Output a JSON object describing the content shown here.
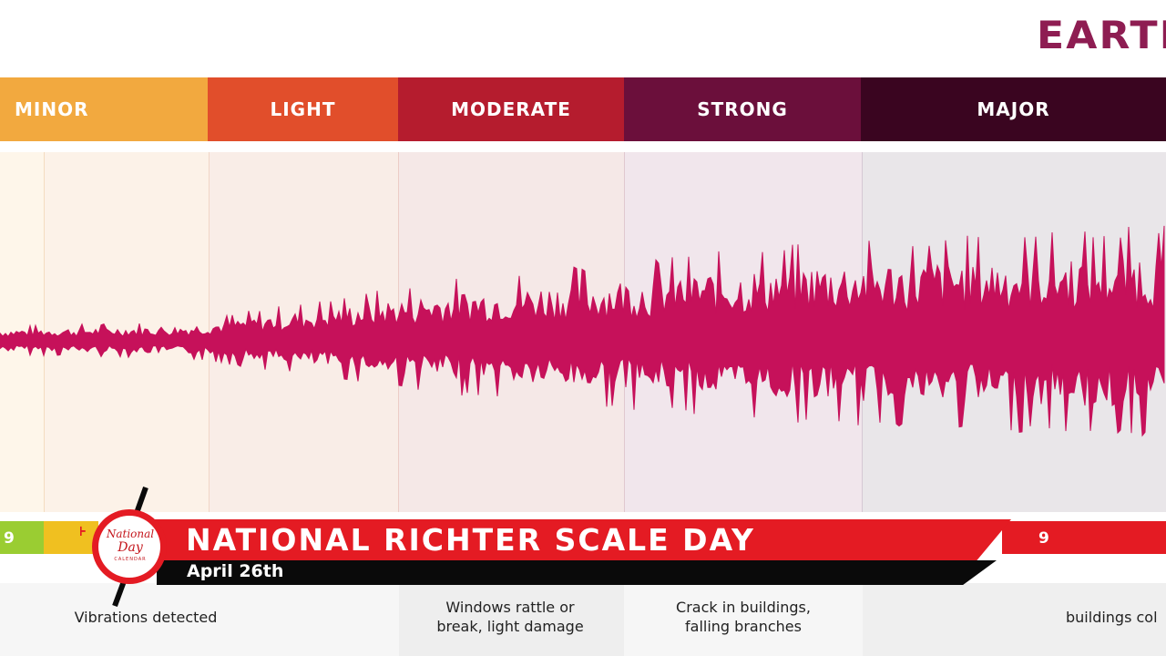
{
  "header": {
    "title": "EARTH"
  },
  "scale_bands": [
    {
      "label": "MINOR",
      "color": "#f2a93f"
    },
    {
      "label": "LIGHT",
      "color": "#e14e2b"
    },
    {
      "label": "MODERATE",
      "color": "#b51c2e"
    },
    {
      "label": "STRONG",
      "color": "#6b0f3b"
    },
    {
      "label": "MAJOR",
      "color": "#3a0520"
    }
  ],
  "bottom_bar": {
    "left_value": "9",
    "right_value": "9"
  },
  "descriptions": {
    "minor": "Vibrations detected",
    "moderate": "Windows rattle or\nbreak, light damage",
    "strong": "Crack in buildings,\nfalling branches",
    "major": "buildings col"
  },
  "banner": {
    "title": "NATIONAL RICHTER SCALE DAY",
    "date": "April 26th"
  },
  "logo": {
    "line1": "National",
    "line2": "Day",
    "line3": "CALENDAR"
  },
  "colors": {
    "wave": "#c6115a",
    "banner_red": "#e41b23",
    "banner_black": "#0a0a0a",
    "title_color": "#8e1d52"
  }
}
